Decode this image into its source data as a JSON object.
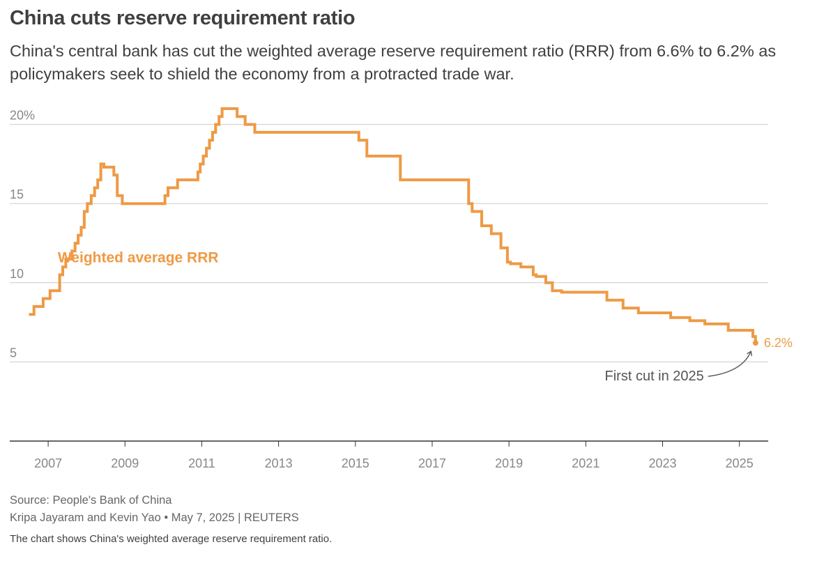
{
  "header": {
    "title": "China cuts reserve requirement ratio",
    "subtitle": "China's central bank has cut the weighted average reserve requirement ratio (RRR) from 6.6% to 6.2% as policymakers seek to shield the economy from a protracted trade war."
  },
  "footer": {
    "source": "Source: People's Bank of China",
    "byline": "Kripa Jayaram and Kevin Yao • May 7, 2025 | REUTERS",
    "description": "The chart shows China's weighted average reserve requirement ratio."
  },
  "colors": {
    "series": "#ee9a45",
    "annotation": "#555555",
    "grid": "#cccccc",
    "axis": "#333333",
    "tick_label": "#888888"
  },
  "chart_data": {
    "type": "line",
    "step": true,
    "xlim": [
      2006.0,
      2025.75
    ],
    "ylim": [
      0,
      21.5
    ],
    "x_ticks": [
      2007,
      2009,
      2011,
      2013,
      2015,
      2017,
      2019,
      2021,
      2023,
      2025
    ],
    "x_tick_labels": [
      "2007",
      "2009",
      "2011",
      "2013",
      "2015",
      "2017",
      "2019",
      "2021",
      "2023",
      "2025"
    ],
    "y_ticks": [
      5,
      10,
      15,
      20
    ],
    "y_tick_labels": [
      "5",
      "10",
      "15",
      "20%"
    ],
    "grid": true,
    "series": [
      {
        "name": "Weighted average RRR",
        "x": [
          2006.5,
          2006.63,
          2006.87,
          2007.05,
          2007.3,
          2007.38,
          2007.46,
          2007.62,
          2007.7,
          2007.78,
          2007.86,
          2007.94,
          2008.02,
          2008.12,
          2008.21,
          2008.29,
          2008.37,
          2008.45,
          2008.71,
          2008.8,
          2008.93,
          2010.04,
          2010.12,
          2010.37,
          2010.9,
          2010.96,
          2011.04,
          2011.12,
          2011.2,
          2011.28,
          2011.36,
          2011.45,
          2011.53,
          2011.92,
          2012.13,
          2012.38,
          2015.09,
          2015.3,
          2016.17,
          2017.95,
          2018.04,
          2018.29,
          2018.54,
          2018.79,
          2018.96,
          2019.04,
          2019.31,
          2019.63,
          2019.71,
          2019.96,
          2020.13,
          2020.37,
          2021.55,
          2021.97,
          2022.37,
          2023.21,
          2023.71,
          2024.1,
          2024.71,
          2025.35
        ],
        "y": [
          8.0,
          8.5,
          9.0,
          9.5,
          10.5,
          11.0,
          11.5,
          12.0,
          12.5,
          13.0,
          13.5,
          14.5,
          15.0,
          15.5,
          16.0,
          16.5,
          17.5,
          17.3,
          16.8,
          15.5,
          15.0,
          15.5,
          16.0,
          16.5,
          17.0,
          17.5,
          18.0,
          18.5,
          19.0,
          19.5,
          20.0,
          20.5,
          21.0,
          20.5,
          20.0,
          19.5,
          19.0,
          18.0,
          16.5,
          15.0,
          14.5,
          13.6,
          13.1,
          12.2,
          11.3,
          11.2,
          11.0,
          10.5,
          10.4,
          10.0,
          9.5,
          9.4,
          8.9,
          8.4,
          8.1,
          7.8,
          7.6,
          7.4,
          7.0,
          6.6
        ],
        "end": {
          "x": 2025.42,
          "y": 6.2
        }
      }
    ],
    "annotations": {
      "series_label": "Weighted average RRR",
      "end_value_label": "6.2%",
      "callout": "First cut in 2025"
    }
  }
}
